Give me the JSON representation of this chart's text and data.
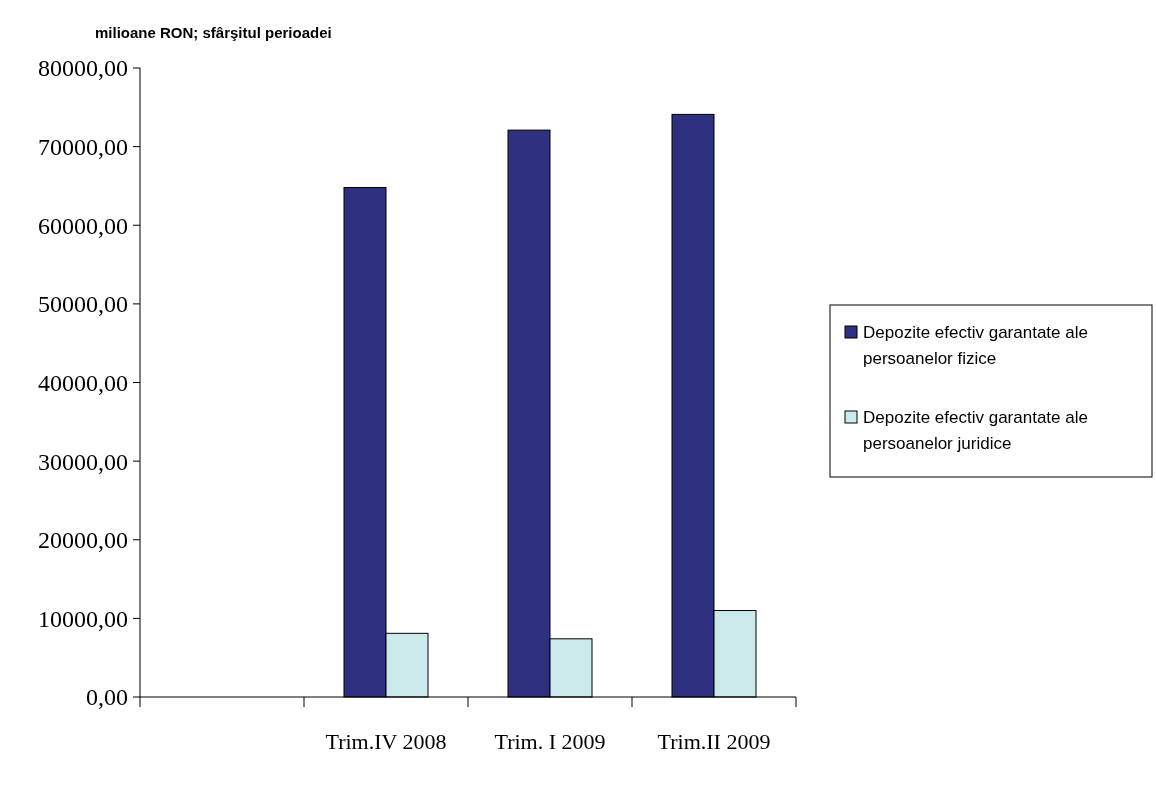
{
  "chart_data": {
    "type": "bar",
    "title": "milioane RON; sfârşitul perioadei",
    "categories": [
      null,
      "Trim.IV 2008",
      "Trim. I 2009",
      "Trim.II 2009"
    ],
    "series": [
      {
        "name": "Depozite efectiv garantate ale persoanelor fizice",
        "color": "#2e3180",
        "values": [
          null,
          64800,
          72100,
          74100
        ]
      },
      {
        "name": "Depozite efectiv garantate ale persoanelor juridice",
        "color": "#cce9ec",
        "values": [
          null,
          8100,
          7400,
          11000
        ]
      }
    ],
    "ylim": [
      0,
      80000
    ],
    "yticks": [
      {
        "value": 0,
        "label": "0,00"
      },
      {
        "value": 10000,
        "label": "10000,00"
      },
      {
        "value": 20000,
        "label": "20000,00"
      },
      {
        "value": 30000,
        "label": "30000,00"
      },
      {
        "value": 40000,
        "label": "40000,00"
      },
      {
        "value": 50000,
        "label": "50000,00"
      },
      {
        "value": 60000,
        "label": "60000,00"
      },
      {
        "value": 70000,
        "label": "70000,00"
      },
      {
        "value": 80000,
        "label": "80000,00"
      }
    ],
    "grid": false,
    "legend": "right"
  }
}
